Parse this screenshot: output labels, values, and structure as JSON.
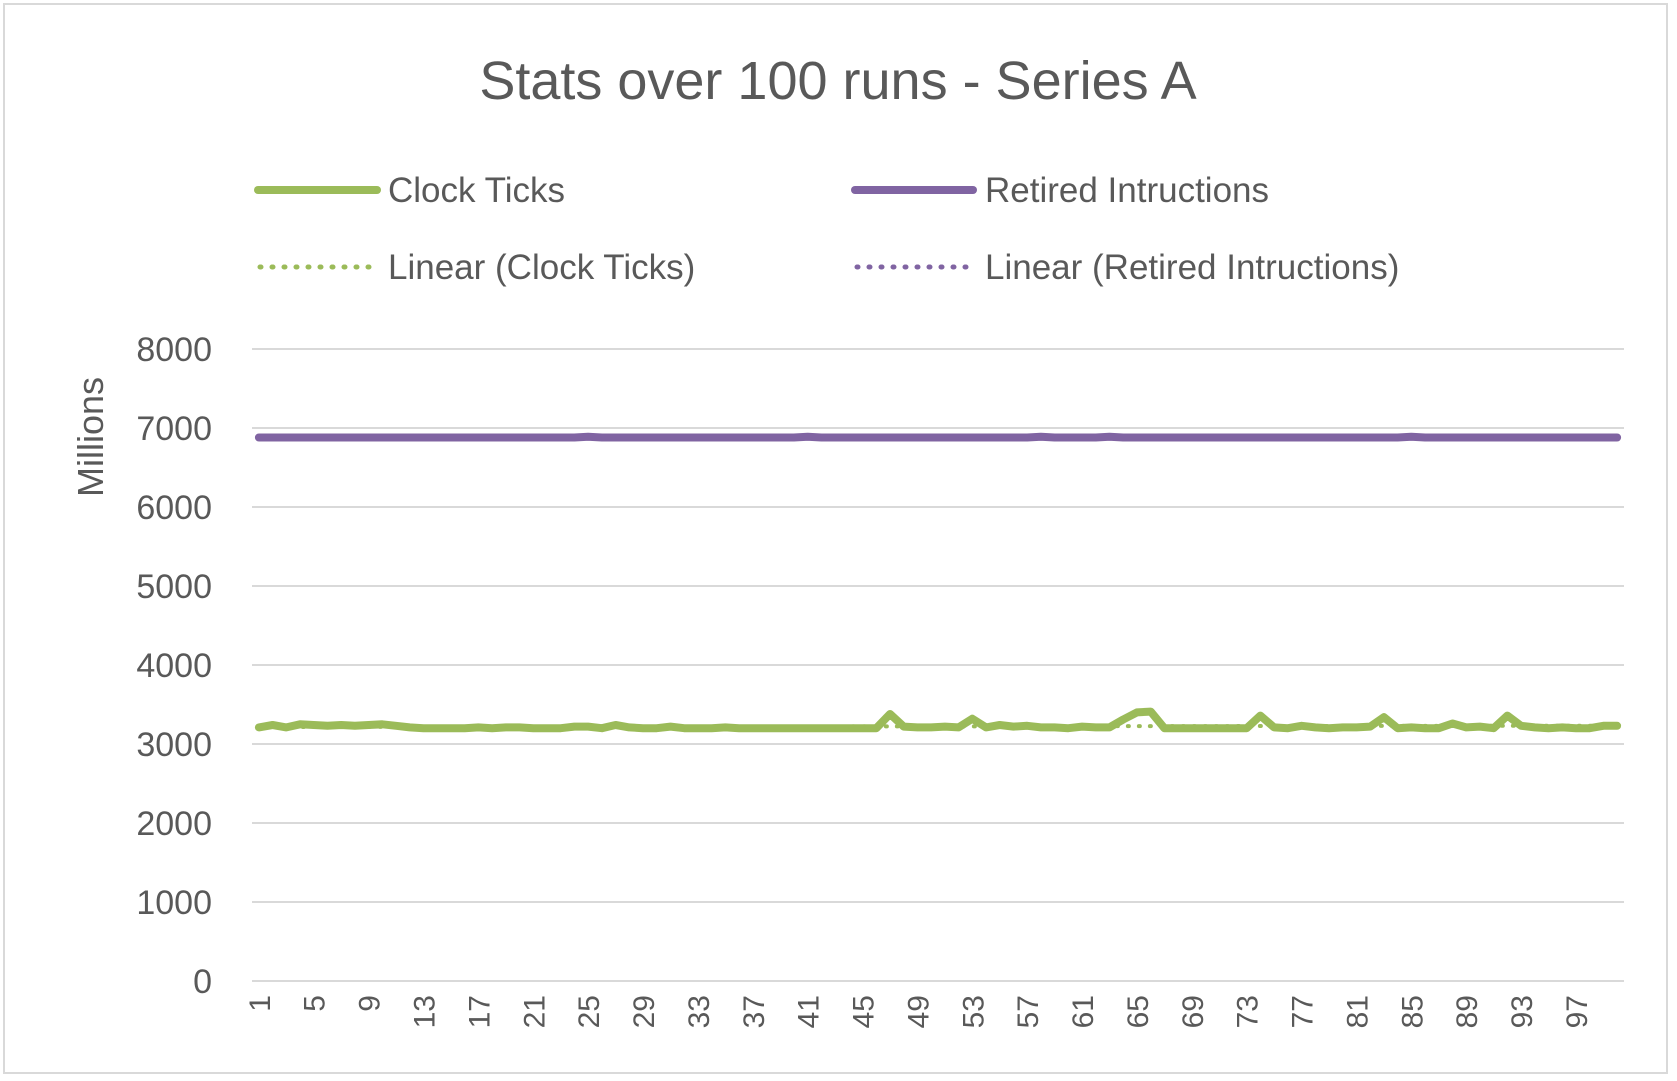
{
  "chart_data": {
    "type": "line",
    "title": "Stats over 100 runs - Series A",
    "ylabel": "Millions",
    "xlabel": "",
    "ylim": [
      0,
      8000
    ],
    "y_ticks": [
      "0",
      "1000",
      "2000",
      "3000",
      "4000",
      "5000",
      "6000",
      "7000",
      "8000"
    ],
    "x_tick_labels": [
      "1",
      "5",
      "9",
      "13",
      "17",
      "21",
      "25",
      "29",
      "33",
      "37",
      "41",
      "45",
      "49",
      "53",
      "57",
      "61",
      "65",
      "69",
      "73",
      "77",
      "81",
      "85",
      "89",
      "93",
      "97"
    ],
    "x_count": 100,
    "grid": true,
    "legend_position": "top",
    "legend": [
      {
        "label": "Clock Ticks",
        "color": "#9bbb59",
        "style": "solid"
      },
      {
        "label": "Retired Intructions",
        "color": "#8064a2",
        "style": "solid"
      },
      {
        "label": "Linear (Clock Ticks)",
        "color": "#9bbb59",
        "style": "dotted"
      },
      {
        "label": "Linear (Retired Intructions)",
        "color": "#8064a2",
        "style": "dotted"
      }
    ],
    "series": [
      {
        "name": "Clock Ticks",
        "color": "#9bbb59",
        "values": [
          3210,
          3240,
          3210,
          3250,
          3240,
          3230,
          3240,
          3230,
          3240,
          3250,
          3230,
          3210,
          3200,
          3200,
          3200,
          3200,
          3210,
          3200,
          3210,
          3210,
          3200,
          3200,
          3200,
          3220,
          3220,
          3200,
          3240,
          3210,
          3200,
          3200,
          3220,
          3200,
          3200,
          3200,
          3210,
          3200,
          3200,
          3200,
          3200,
          3200,
          3200,
          3200,
          3200,
          3200,
          3200,
          3200,
          3380,
          3220,
          3210,
          3210,
          3220,
          3210,
          3320,
          3210,
          3240,
          3220,
          3230,
          3210,
          3210,
          3200,
          3220,
          3210,
          3210,
          3310,
          3400,
          3410,
          3200,
          3200,
          3200,
          3200,
          3200,
          3200,
          3200,
          3360,
          3210,
          3200,
          3230,
          3210,
          3200,
          3210,
          3210,
          3220,
          3340,
          3200,
          3210,
          3200,
          3200,
          3260,
          3210,
          3220,
          3200,
          3360,
          3230,
          3210,
          3200,
          3210,
          3200,
          3200,
          3230,
          3230
        ]
      },
      {
        "name": "Retired Intructions",
        "color": "#8064a2",
        "values": [
          6880,
          6880,
          6880,
          6880,
          6880,
          6880,
          6880,
          6880,
          6880,
          6880,
          6880,
          6880,
          6880,
          6880,
          6880,
          6880,
          6880,
          6880,
          6880,
          6880,
          6880,
          6880,
          6880,
          6880,
          6890,
          6880,
          6880,
          6880,
          6880,
          6880,
          6880,
          6880,
          6880,
          6880,
          6880,
          6880,
          6880,
          6880,
          6880,
          6880,
          6890,
          6880,
          6880,
          6880,
          6880,
          6880,
          6880,
          6880,
          6880,
          6880,
          6880,
          6880,
          6880,
          6880,
          6880,
          6880,
          6880,
          6890,
          6880,
          6880,
          6880,
          6880,
          6890,
          6880,
          6880,
          6880,
          6880,
          6880,
          6880,
          6880,
          6880,
          6880,
          6880,
          6880,
          6880,
          6880,
          6880,
          6880,
          6880,
          6880,
          6880,
          6880,
          6880,
          6880,
          6890,
          6880,
          6880,
          6880,
          6880,
          6880,
          6880,
          6880,
          6880,
          6880,
          6880,
          6880,
          6880,
          6880,
          6880,
          6880
        ]
      }
    ],
    "trendlines": [
      {
        "name": "Linear (Clock Ticks)",
        "of": "Clock Ticks",
        "color": "#9bbb59",
        "style": "dotted"
      },
      {
        "name": "Linear (Retired Intructions)",
        "of": "Retired Intructions",
        "color": "#8064a2",
        "style": "dotted"
      }
    ]
  }
}
